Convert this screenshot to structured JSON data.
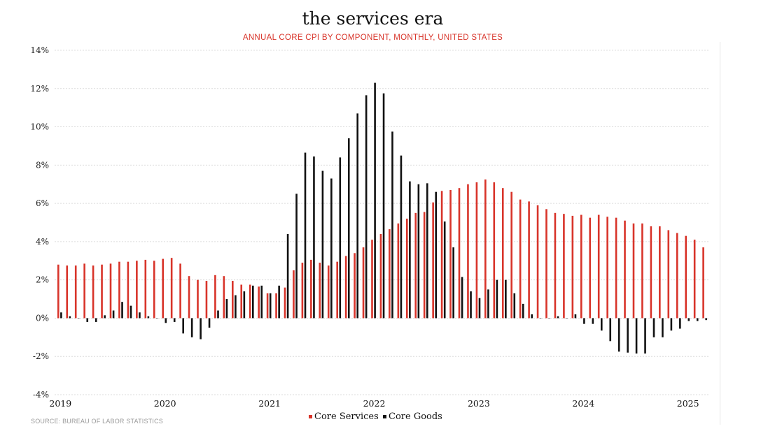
{
  "header": {
    "title": "the services era",
    "subtitle": "ANNUAL CORE CPI BY COMPONENT, MONTHLY, UNITED STATES"
  },
  "footer": {
    "source": "SOURCE: BUREAU OF LABOR STATISTICS"
  },
  "chart_data": {
    "type": "bar",
    "title": "the services era",
    "subtitle": "ANNUAL CORE CPI BY COMPONENT, MONTHLY, UNITED STATES",
    "xlabel": "",
    "ylabel": "",
    "ylim": [
      -4,
      14
    ],
    "yticks": [
      "14%",
      "12%",
      "10%",
      "8%",
      "6%",
      "4%",
      "2%",
      "0%",
      "-2%",
      "-4%"
    ],
    "ytick_values": [
      14,
      12,
      10,
      8,
      6,
      4,
      2,
      0,
      -2,
      -4
    ],
    "xtick_labels": [
      "2019",
      "2020",
      "2021",
      "2022",
      "2023",
      "2024",
      "2025"
    ],
    "x_start": "2019-01",
    "x_end": "2025-03",
    "grid": true,
    "legend_position": "bottom",
    "colors": {
      "services": "#d8342a",
      "goods": "#111111",
      "grid": "#dcdcdc"
    },
    "series": [
      {
        "name": "Core Services",
        "color": "#d8342a",
        "values": [
          2.8,
          2.75,
          2.75,
          2.85,
          2.75,
          2.8,
          2.85,
          2.95,
          2.95,
          3.0,
          3.05,
          3.0,
          3.1,
          3.15,
          2.85,
          2.2,
          2.0,
          1.95,
          2.25,
          2.2,
          1.95,
          1.75,
          1.75,
          1.65,
          1.3,
          1.3,
          1.6,
          2.5,
          2.9,
          3.05,
          2.9,
          2.75,
          2.95,
          3.25,
          3.4,
          3.7,
          4.1,
          4.4,
          4.65,
          4.95,
          5.2,
          5.5,
          5.55,
          6.05,
          6.65,
          6.7,
          6.8,
          7.0,
          7.1,
          7.25,
          7.1,
          6.8,
          6.6,
          6.2,
          6.1,
          5.9,
          5.7,
          5.5,
          5.45,
          5.35,
          5.4,
          5.25,
          5.4,
          5.3,
          5.25,
          5.1,
          4.95,
          4.95,
          4.8,
          4.8,
          4.6,
          4.45,
          4.3,
          4.1,
          3.7
        ]
      },
      {
        "name": "Core Goods",
        "color": "#111111",
        "values": [
          0.3,
          0.1,
          0.0,
          -0.2,
          -0.2,
          0.15,
          0.4,
          0.85,
          0.65,
          0.3,
          0.1,
          0.0,
          -0.25,
          -0.2,
          -0.8,
          -1.0,
          -1.1,
          -0.5,
          0.4,
          1.0,
          1.2,
          1.4,
          1.7,
          1.7,
          1.3,
          1.7,
          4.4,
          6.5,
          8.65,
          8.45,
          7.7,
          7.3,
          8.4,
          9.4,
          10.7,
          11.65,
          12.3,
          11.75,
          9.75,
          8.5,
          7.15,
          7.0,
          7.05,
          6.6,
          5.05,
          3.7,
          2.15,
          1.4,
          1.05,
          1.5,
          2.0,
          2.0,
          1.3,
          0.75,
          0.2,
          0.0,
          0.0,
          0.1,
          0.0,
          0.2,
          -0.3,
          -0.3,
          -0.65,
          -1.2,
          -1.75,
          -1.8,
          -1.85,
          -1.85,
          -1.0,
          -1.0,
          -0.65,
          -0.55,
          -0.15,
          -0.15,
          -0.1
        ]
      }
    ],
    "legend": [
      "Core Services",
      "Core Goods"
    ]
  }
}
